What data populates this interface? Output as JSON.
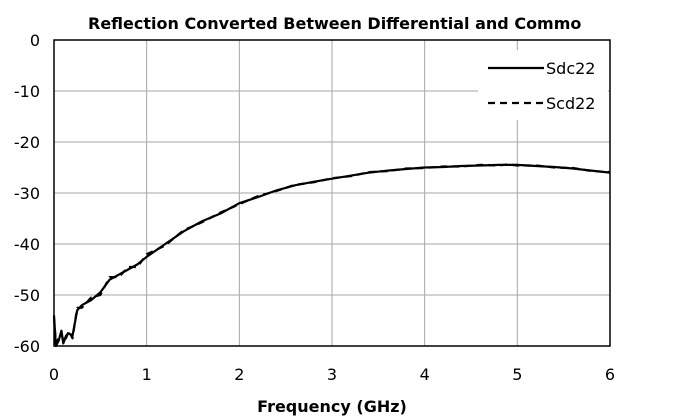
{
  "chart_data": {
    "type": "line",
    "title": "Reflection Converted Between Differential and Commo",
    "xlabel": "Frequency (GHz)",
    "ylabel": "",
    "xlim": [
      0,
      6
    ],
    "ylim": [
      -60,
      0
    ],
    "xticks": [
      "0",
      "1",
      "2",
      "3",
      "4",
      "5",
      "6"
    ],
    "yticks": [
      "0",
      "-10",
      "-20",
      "-30",
      "-40",
      "-50",
      "-60"
    ],
    "grid": true,
    "legend_position": "top-right",
    "series": [
      {
        "name": "Sdc22",
        "style": "solid",
        "color": "#000000",
        "x": [
          0,
          0.02,
          0.05,
          0.08,
          0.1,
          0.13,
          0.16,
          0.2,
          0.25,
          0.3,
          0.4,
          0.5,
          0.6,
          0.7,
          0.8,
          0.9,
          1.0,
          1.2,
          1.4,
          1.6,
          1.8,
          2.0,
          2.2,
          2.4,
          2.6,
          2.8,
          3.0,
          3.2,
          3.4,
          3.6,
          3.8,
          4.0,
          4.2,
          4.4,
          4.6,
          4.8,
          4.9,
          5.0,
          5.2,
          5.4,
          5.6,
          5.8,
          6.0
        ],
        "y": [
          -54,
          -60,
          -59,
          -57,
          -59.5,
          -58,
          -57.5,
          -58,
          -53,
          -52,
          -51,
          -49.5,
          -47,
          -46,
          -45,
          -44,
          -42.5,
          -40,
          -37.5,
          -35.5,
          -34,
          -32,
          -30.8,
          -29.5,
          -28.5,
          -27.8,
          -27.2,
          -26.6,
          -26,
          -25.6,
          -25.3,
          -25,
          -24.9,
          -24.7,
          -24.6,
          -24.5,
          -24.5,
          -24.5,
          -24.7,
          -24.9,
          -25.2,
          -25.6,
          -26
        ]
      },
      {
        "name": "Scd22",
        "style": "dashed",
        "color": "#000000",
        "x": [
          0,
          0.02,
          0.05,
          0.08,
          0.1,
          0.13,
          0.16,
          0.2,
          0.25,
          0.3,
          0.4,
          0.5,
          0.6,
          0.7,
          0.8,
          0.9,
          1.0,
          1.2,
          1.4,
          1.6,
          1.8,
          2.0,
          2.2,
          2.4,
          2.6,
          2.8,
          3.0,
          3.2,
          3.4,
          3.6,
          3.8,
          4.0,
          4.2,
          4.4,
          4.6,
          4.8,
          4.9,
          5.0,
          5.2,
          5.4,
          5.6,
          5.8,
          6.0
        ],
        "y": [
          -54.5,
          -59.5,
          -58.5,
          -57.5,
          -59,
          -58.5,
          -57,
          -58.5,
          -52.5,
          -52.5,
          -50.5,
          -50,
          -46.5,
          -46.5,
          -44.5,
          -44.5,
          -42,
          -40.3,
          -37.3,
          -35.7,
          -33.8,
          -32.2,
          -30.6,
          -29.6,
          -28.4,
          -27.9,
          -27.1,
          -26.7,
          -25.9,
          -25.7,
          -25.2,
          -25.1,
          -24.8,
          -24.8,
          -24.5,
          -24.6,
          -24.4,
          -24.6,
          -24.6,
          -25,
          -25.1,
          -25.7,
          -25.9
        ]
      }
    ]
  }
}
